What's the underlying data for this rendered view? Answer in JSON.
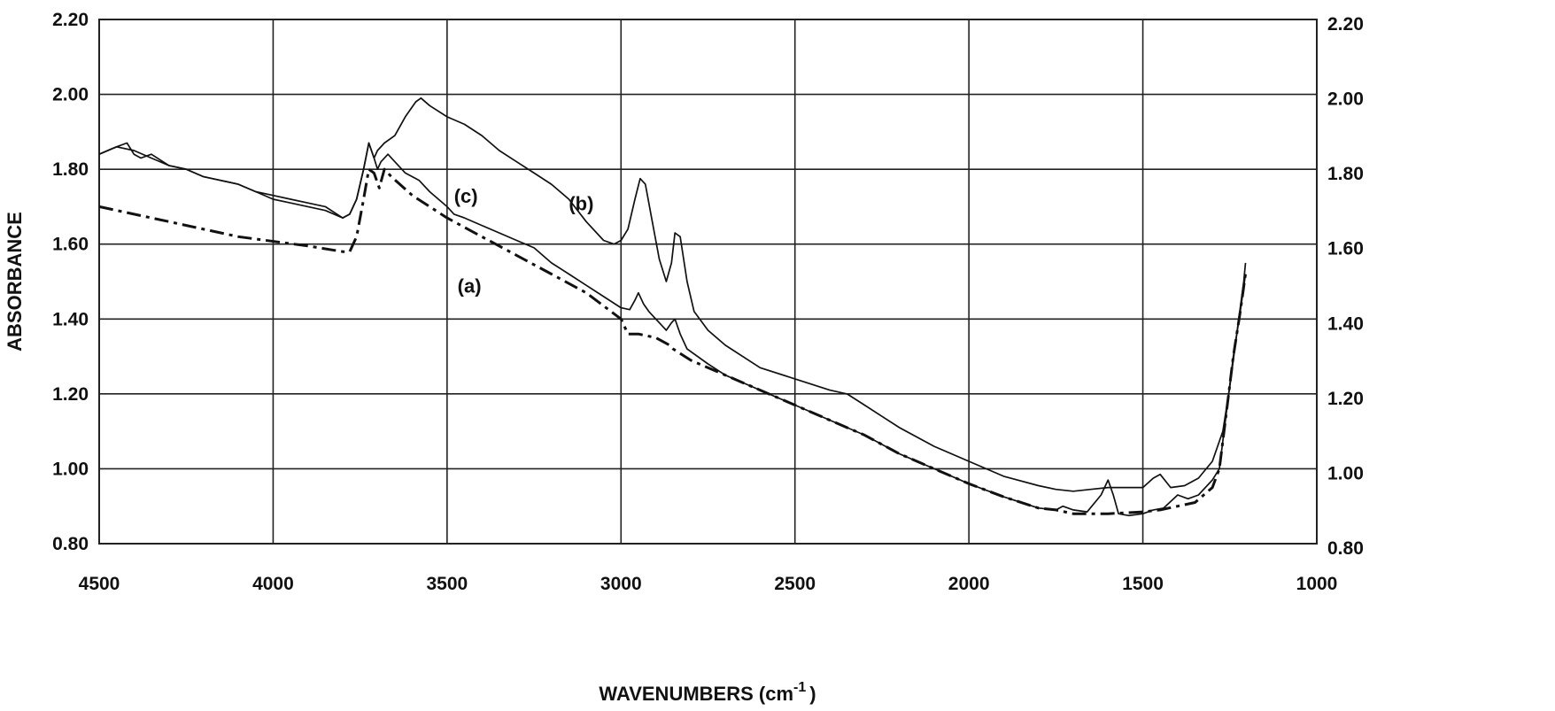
{
  "chart_data": {
    "type": "line",
    "xlabel": "WAVENUMBERS (cm",
    "xlabel_sup": "-1",
    "xlabel_end": ")",
    "ylabel": "ABSORBANCE",
    "xlim": [
      4500,
      1000
    ],
    "ylim": [
      0.8,
      2.2
    ],
    "x_ticks": [
      4500,
      4000,
      3500,
      3000,
      2500,
      2000,
      1500,
      1000
    ],
    "x_tick_labels": [
      "4500",
      "4000",
      "3500",
      "3000",
      "2500",
      "2000",
      "1500",
      "1000"
    ],
    "y_ticks": [
      0.8,
      1.0,
      1.2,
      1.4,
      1.6,
      1.8,
      2.0,
      2.2
    ],
    "y_tick_labels": [
      "0.80",
      "1.00",
      "1.20",
      "1.40",
      "1.60",
      "1.80",
      "2.00",
      "2.20"
    ],
    "grid": true,
    "right_axis_labels": true,
    "series": [
      {
        "name": "(a)",
        "dash": "dashdot",
        "color": "#111111",
        "points": [
          [
            4500,
            1.7
          ],
          [
            4300,
            1.66
          ],
          [
            4100,
            1.62
          ],
          [
            3900,
            1.595
          ],
          [
            3800,
            1.58
          ],
          [
            3780,
            1.58
          ],
          [
            3760,
            1.62
          ],
          [
            3740,
            1.72
          ],
          [
            3725,
            1.8
          ],
          [
            3710,
            1.79
          ],
          [
            3695,
            1.75
          ],
          [
            3680,
            1.8
          ],
          [
            3660,
            1.78
          ],
          [
            3600,
            1.73
          ],
          [
            3500,
            1.67
          ],
          [
            3400,
            1.62
          ],
          [
            3300,
            1.57
          ],
          [
            3200,
            1.52
          ],
          [
            3100,
            1.47
          ],
          [
            3000,
            1.4
          ],
          [
            2980,
            1.36
          ],
          [
            2950,
            1.36
          ],
          [
            2900,
            1.35
          ],
          [
            2860,
            1.33
          ],
          [
            2850,
            1.32
          ],
          [
            2800,
            1.29
          ],
          [
            2700,
            1.25
          ],
          [
            2600,
            1.21
          ],
          [
            2500,
            1.17
          ],
          [
            2400,
            1.13
          ],
          [
            2300,
            1.09
          ],
          [
            2200,
            1.04
          ],
          [
            2100,
            1.0
          ],
          [
            2000,
            0.96
          ],
          [
            1900,
            0.925
          ],
          [
            1800,
            0.895
          ],
          [
            1750,
            0.89
          ],
          [
            1700,
            0.88
          ],
          [
            1650,
            0.88
          ],
          [
            1600,
            0.88
          ],
          [
            1500,
            0.885
          ],
          [
            1450,
            0.89
          ],
          [
            1400,
            0.9
          ],
          [
            1350,
            0.91
          ],
          [
            1300,
            0.95
          ],
          [
            1280,
            1.0
          ],
          [
            1260,
            1.15
          ],
          [
            1240,
            1.3
          ],
          [
            1220,
            1.42
          ],
          [
            1205,
            1.52
          ]
        ]
      },
      {
        "name": "(b)",
        "dash": "solid",
        "color": "#111111",
        "points": [
          [
            4500,
            1.84
          ],
          [
            4450,
            1.86
          ],
          [
            4420,
            1.87
          ],
          [
            4400,
            1.84
          ],
          [
            4380,
            1.83
          ],
          [
            4350,
            1.84
          ],
          [
            4300,
            1.81
          ],
          [
            4250,
            1.8
          ],
          [
            4200,
            1.78
          ],
          [
            4150,
            1.77
          ],
          [
            4100,
            1.76
          ],
          [
            4050,
            1.74
          ],
          [
            4000,
            1.73
          ],
          [
            3950,
            1.72
          ],
          [
            3900,
            1.71
          ],
          [
            3850,
            1.7
          ],
          [
            3800,
            1.67
          ],
          [
            3780,
            1.68
          ],
          [
            3760,
            1.72
          ],
          [
            3740,
            1.8
          ],
          [
            3725,
            1.87
          ],
          [
            3710,
            1.83
          ],
          [
            3700,
            1.85
          ],
          [
            3680,
            1.87
          ],
          [
            3650,
            1.89
          ],
          [
            3620,
            1.94
          ],
          [
            3590,
            1.98
          ],
          [
            3575,
            1.99
          ],
          [
            3550,
            1.97
          ],
          [
            3500,
            1.94
          ],
          [
            3450,
            1.92
          ],
          [
            3400,
            1.89
          ],
          [
            3350,
            1.85
          ],
          [
            3300,
            1.82
          ],
          [
            3250,
            1.79
          ],
          [
            3200,
            1.76
          ],
          [
            3150,
            1.72
          ],
          [
            3100,
            1.66
          ],
          [
            3050,
            1.61
          ],
          [
            3020,
            1.6
          ],
          [
            3000,
            1.61
          ],
          [
            2980,
            1.64
          ],
          [
            2960,
            1.72
          ],
          [
            2945,
            1.775
          ],
          [
            2930,
            1.76
          ],
          [
            2910,
            1.66
          ],
          [
            2890,
            1.56
          ],
          [
            2870,
            1.5
          ],
          [
            2855,
            1.55
          ],
          [
            2845,
            1.63
          ],
          [
            2830,
            1.62
          ],
          [
            2810,
            1.5
          ],
          [
            2790,
            1.42
          ],
          [
            2750,
            1.37
          ],
          [
            2700,
            1.33
          ],
          [
            2600,
            1.27
          ],
          [
            2500,
            1.24
          ],
          [
            2400,
            1.21
          ],
          [
            2350,
            1.2
          ],
          [
            2300,
            1.17
          ],
          [
            2250,
            1.14
          ],
          [
            2200,
            1.11
          ],
          [
            2100,
            1.06
          ],
          [
            2000,
            1.02
          ],
          [
            1900,
            0.98
          ],
          [
            1800,
            0.955
          ],
          [
            1750,
            0.945
          ],
          [
            1700,
            0.94
          ],
          [
            1650,
            0.945
          ],
          [
            1600,
            0.95
          ],
          [
            1550,
            0.95
          ],
          [
            1500,
            0.95
          ],
          [
            1470,
            0.975
          ],
          [
            1450,
            0.985
          ],
          [
            1420,
            0.95
          ],
          [
            1380,
            0.955
          ],
          [
            1340,
            0.975
          ],
          [
            1300,
            1.02
          ],
          [
            1270,
            1.1
          ],
          [
            1250,
            1.22
          ],
          [
            1230,
            1.36
          ],
          [
            1210,
            1.5
          ],
          [
            1205,
            1.55
          ]
        ]
      },
      {
        "name": "(c)",
        "dash": "solid",
        "color": "#111111",
        "points": [
          [
            4500,
            1.84
          ],
          [
            4450,
            1.86
          ],
          [
            4400,
            1.85
          ],
          [
            4350,
            1.83
          ],
          [
            4300,
            1.81
          ],
          [
            4250,
            1.8
          ],
          [
            4200,
            1.78
          ],
          [
            4150,
            1.77
          ],
          [
            4100,
            1.76
          ],
          [
            4050,
            1.74
          ],
          [
            4000,
            1.72
          ],
          [
            3950,
            1.71
          ],
          [
            3900,
            1.7
          ],
          [
            3850,
            1.69
          ],
          [
            3800,
            1.67
          ],
          [
            3780,
            1.68
          ],
          [
            3760,
            1.72
          ],
          [
            3740,
            1.8
          ],
          [
            3725,
            1.87
          ],
          [
            3710,
            1.83
          ],
          [
            3700,
            1.8
          ],
          [
            3690,
            1.82
          ],
          [
            3670,
            1.84
          ],
          [
            3650,
            1.82
          ],
          [
            3620,
            1.79
          ],
          [
            3580,
            1.77
          ],
          [
            3550,
            1.74
          ],
          [
            3500,
            1.7
          ],
          [
            3480,
            1.68
          ],
          [
            3450,
            1.67
          ],
          [
            3400,
            1.65
          ],
          [
            3300,
            1.61
          ],
          [
            3250,
            1.59
          ],
          [
            3200,
            1.55
          ],
          [
            3150,
            1.52
          ],
          [
            3100,
            1.49
          ],
          [
            3050,
            1.46
          ],
          [
            3000,
            1.43
          ],
          [
            2975,
            1.425
          ],
          [
            2960,
            1.45
          ],
          [
            2950,
            1.47
          ],
          [
            2935,
            1.44
          ],
          [
            2920,
            1.42
          ],
          [
            2880,
            1.38
          ],
          [
            2870,
            1.37
          ],
          [
            2855,
            1.39
          ],
          [
            2845,
            1.4
          ],
          [
            2830,
            1.36
          ],
          [
            2810,
            1.32
          ],
          [
            2750,
            1.28
          ],
          [
            2700,
            1.25
          ],
          [
            2600,
            1.21
          ],
          [
            2500,
            1.17
          ],
          [
            2400,
            1.13
          ],
          [
            2300,
            1.09
          ],
          [
            2200,
            1.04
          ],
          [
            2100,
            1.0
          ],
          [
            2000,
            0.96
          ],
          [
            1900,
            0.925
          ],
          [
            1800,
            0.895
          ],
          [
            1750,
            0.89
          ],
          [
            1730,
            0.9
          ],
          [
            1700,
            0.89
          ],
          [
            1660,
            0.885
          ],
          [
            1620,
            0.93
          ],
          [
            1600,
            0.97
          ],
          [
            1585,
            0.93
          ],
          [
            1570,
            0.88
          ],
          [
            1540,
            0.875
          ],
          [
            1500,
            0.88
          ],
          [
            1470,
            0.89
          ],
          [
            1440,
            0.895
          ],
          [
            1400,
            0.93
          ],
          [
            1370,
            0.92
          ],
          [
            1340,
            0.93
          ],
          [
            1300,
            0.97
          ],
          [
            1280,
            1.0
          ],
          [
            1260,
            1.15
          ],
          [
            1240,
            1.3
          ],
          [
            1220,
            1.42
          ],
          [
            1205,
            1.52
          ]
        ]
      }
    ],
    "annotations": [
      {
        "text": "(a)",
        "x": 3470,
        "y": 1.47
      },
      {
        "text": "(b)",
        "x": 3150,
        "y": 1.69
      },
      {
        "text": "(c)",
        "x": 3480,
        "y": 1.71
      }
    ]
  }
}
